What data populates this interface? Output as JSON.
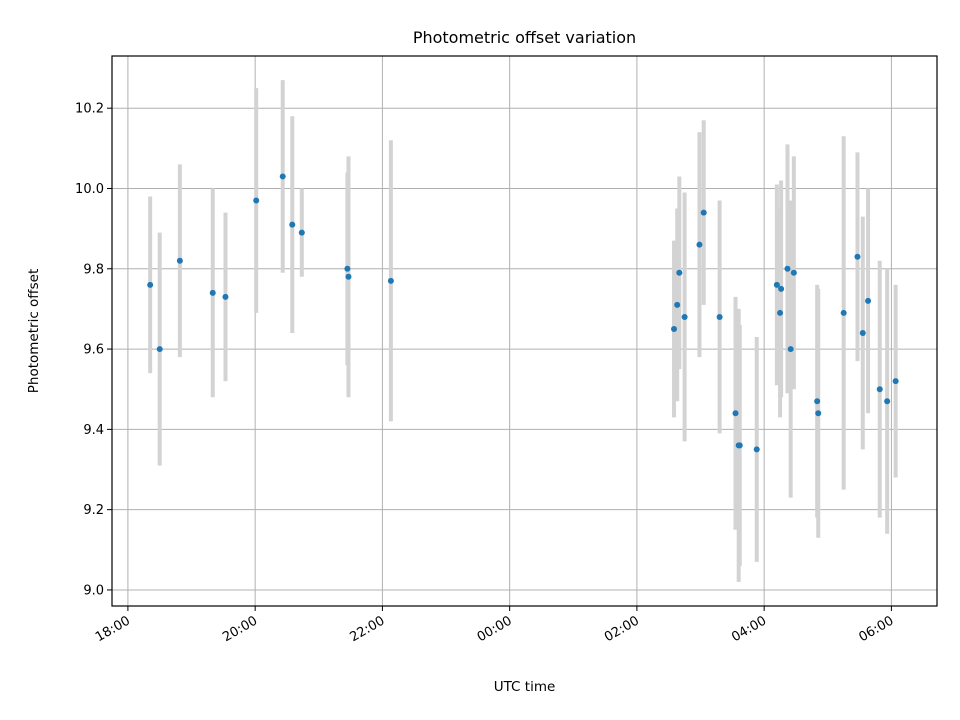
{
  "chart_data": {
    "type": "scatter",
    "title": "Photometric offset variation",
    "xlabel": "UTC time",
    "ylabel": "Photometric offset",
    "x_unit": "UTC time (HH:MM, 18:00 on day 1 through 06:00 on day 2)",
    "xlim": [
      "17:45",
      "06:43"
    ],
    "ylim": [
      8.96,
      10.33
    ],
    "x_ticks": [
      "18:00",
      "20:00",
      "22:00",
      "00:00",
      "02:00",
      "04:00",
      "06:00"
    ],
    "y_ticks": [
      9.0,
      9.2,
      9.4,
      9.6,
      9.8,
      10.0,
      10.2
    ],
    "grid": true,
    "legend": "none",
    "colors": {
      "points": "#1f77b4",
      "error_bars": "#d3d3d3"
    },
    "points": [
      {
        "x": "18:21",
        "y": 9.76,
        "err": 0.22
      },
      {
        "x": "18:30",
        "y": 9.6,
        "err": 0.29
      },
      {
        "x": "18:49",
        "y": 9.82,
        "err": 0.24
      },
      {
        "x": "19:20",
        "y": 9.74,
        "err": 0.26
      },
      {
        "x": "19:32",
        "y": 9.73,
        "err": 0.21
      },
      {
        "x": "20:01",
        "y": 9.97,
        "err": 0.28
      },
      {
        "x": "20:26",
        "y": 10.03,
        "err": 0.24
      },
      {
        "x": "20:35",
        "y": 9.91,
        "err": 0.27
      },
      {
        "x": "20:44",
        "y": 9.89,
        "err": 0.11
      },
      {
        "x": "21:27",
        "y": 9.8,
        "err": 0.24
      },
      {
        "x": "21:28",
        "y": 9.78,
        "err": 0.3
      },
      {
        "x": "22:08",
        "y": 9.77,
        "err": 0.35
      },
      {
        "x": "02:35",
        "y": 9.65,
        "err": 0.22
      },
      {
        "x": "02:38",
        "y": 9.71,
        "err": 0.24
      },
      {
        "x": "02:40",
        "y": 9.79,
        "err": 0.24
      },
      {
        "x": "02:45",
        "y": 9.68,
        "err": 0.31
      },
      {
        "x": "02:59",
        "y": 9.86,
        "err": 0.28
      },
      {
        "x": "03:03",
        "y": 9.94,
        "err": 0.23
      },
      {
        "x": "03:18",
        "y": 9.68,
        "err": 0.29
      },
      {
        "x": "03:33",
        "y": 9.44,
        "err": 0.29
      },
      {
        "x": "03:36",
        "y": 9.36,
        "err": 0.34
      },
      {
        "x": "03:37",
        "y": 9.36,
        "err": 0.3
      },
      {
        "x": "03:53",
        "y": 9.35,
        "err": 0.28
      },
      {
        "x": "04:12",
        "y": 9.76,
        "err": 0.25
      },
      {
        "x": "04:15",
        "y": 9.69,
        "err": 0.26
      },
      {
        "x": "04:16",
        "y": 9.75,
        "err": 0.27
      },
      {
        "x": "04:22",
        "y": 9.8,
        "err": 0.31
      },
      {
        "x": "04:25",
        "y": 9.6,
        "err": 0.37
      },
      {
        "x": "04:28",
        "y": 9.79,
        "err": 0.29
      },
      {
        "x": "04:50",
        "y": 9.47,
        "err": 0.29
      },
      {
        "x": "04:51",
        "y": 9.44,
        "err": 0.31
      },
      {
        "x": "05:15",
        "y": 9.69,
        "err": 0.44
      },
      {
        "x": "05:28",
        "y": 9.83,
        "err": 0.26
      },
      {
        "x": "05:33",
        "y": 9.64,
        "err": 0.29
      },
      {
        "x": "05:38",
        "y": 9.72,
        "err": 0.28
      },
      {
        "x": "05:49",
        "y": 9.5,
        "err": 0.32
      },
      {
        "x": "05:56",
        "y": 9.47,
        "err": 0.33
      },
      {
        "x": "06:04",
        "y": 9.52,
        "err": 0.24
      }
    ]
  }
}
